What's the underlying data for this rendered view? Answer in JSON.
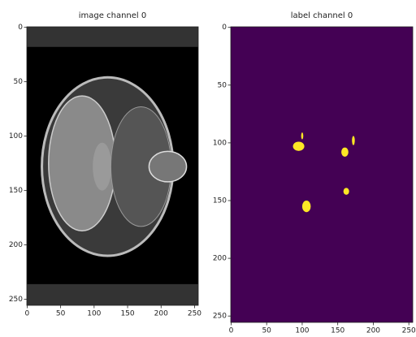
{
  "chart_data": [
    {
      "type": "image",
      "title": "image channel 0",
      "xlim": [
        -0.5,
        255.5
      ],
      "ylim": [
        255.5,
        -0.5
      ],
      "xticks": [
        0,
        50,
        100,
        150,
        200,
        250
      ],
      "yticks": [
        0,
        50,
        100,
        150,
        200,
        250
      ]
    },
    {
      "type": "image",
      "title": "label channel 0",
      "xlim": [
        -0.5,
        255.5
      ],
      "ylim": [
        255.5,
        -0.5
      ],
      "xticks": [
        0,
        50,
        100,
        150,
        200,
        250
      ],
      "yticks": [
        0,
        50,
        100,
        150,
        200,
        250
      ]
    }
  ]
}
